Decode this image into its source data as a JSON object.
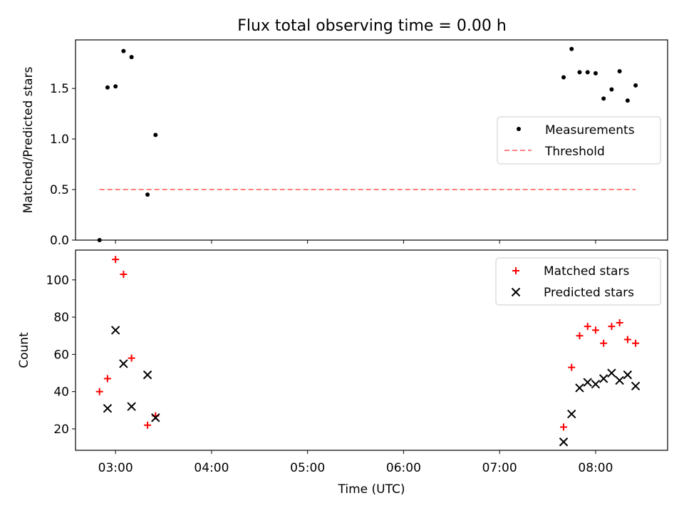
{
  "title": "Flux total observing time = 0.00 h",
  "chart_data": [
    {
      "type": "scatter",
      "ylabel": "Matched/Predicted stars",
      "xlabel": "",
      "ylim": [
        0,
        1.98
      ],
      "yticks": [
        0.0,
        0.5,
        1.0,
        1.5
      ],
      "ytick_labels": [
        "0.0",
        "0.5",
        "1.0",
        "1.5"
      ],
      "legend_position": "center-right",
      "legend": [
        "Measurements",
        "Threshold"
      ],
      "series": [
        {
          "name": "Measurements",
          "color": "#000000",
          "marker": "dot",
          "x": [
            "02:50",
            "02:55",
            "03:00",
            "03:05",
            "03:10",
            "03:20",
            "03:25",
            "07:40",
            "07:45",
            "07:50",
            "07:55",
            "08:00",
            "08:05",
            "08:10",
            "08:15",
            "08:20",
            "08:25"
          ],
          "y": [
            0.0,
            1.51,
            1.52,
            1.87,
            1.81,
            0.45,
            1.04,
            1.61,
            1.89,
            1.66,
            1.66,
            1.65,
            1.4,
            1.49,
            1.67,
            1.38,
            1.53
          ]
        },
        {
          "name": "Threshold",
          "color": "#ff7f7f",
          "marker": "dashed-line",
          "x": [
            "02:50",
            "08:25"
          ],
          "y": [
            0.5,
            0.5
          ]
        }
      ]
    },
    {
      "type": "scatter",
      "ylabel": "Count",
      "xlabel": "Time (UTC)",
      "ylim": [
        8.5,
        116
      ],
      "yticks": [
        20,
        40,
        60,
        80,
        100
      ],
      "ytick_labels": [
        "20",
        "40",
        "60",
        "80",
        "100"
      ],
      "xticks": [
        "03:00",
        "04:00",
        "05:00",
        "06:00",
        "07:00",
        "08:00"
      ],
      "xlim": [
        "02:35",
        "08:45"
      ],
      "legend_position": "top-right",
      "legend": [
        "Matched stars",
        "Predicted stars"
      ],
      "series": [
        {
          "name": "Matched stars",
          "color": "#ff0000",
          "marker": "plus",
          "x": [
            "02:50",
            "02:55",
            "03:00",
            "03:05",
            "03:10",
            "03:20",
            "03:25",
            "07:40",
            "07:45",
            "07:50",
            "07:55",
            "08:00",
            "08:05",
            "08:10",
            "08:15",
            "08:20",
            "08:25"
          ],
          "y": [
            40,
            47,
            111,
            103,
            58,
            22,
            27,
            21,
            53,
            70,
            75,
            73,
            66,
            75,
            77,
            68,
            66
          ]
        },
        {
          "name": "Predicted stars",
          "color": "#000000",
          "marker": "x",
          "x": [
            "02:55",
            "03:00",
            "03:05",
            "03:10",
            "03:20",
            "03:25",
            "07:40",
            "07:45",
            "07:50",
            "07:55",
            "08:00",
            "08:05",
            "08:10",
            "08:15",
            "08:20",
            "08:25"
          ],
          "y": [
            31,
            73,
            55,
            32,
            49,
            26,
            13,
            28,
            42,
            45,
            44,
            47,
            50,
            46,
            49,
            43
          ]
        }
      ]
    }
  ]
}
